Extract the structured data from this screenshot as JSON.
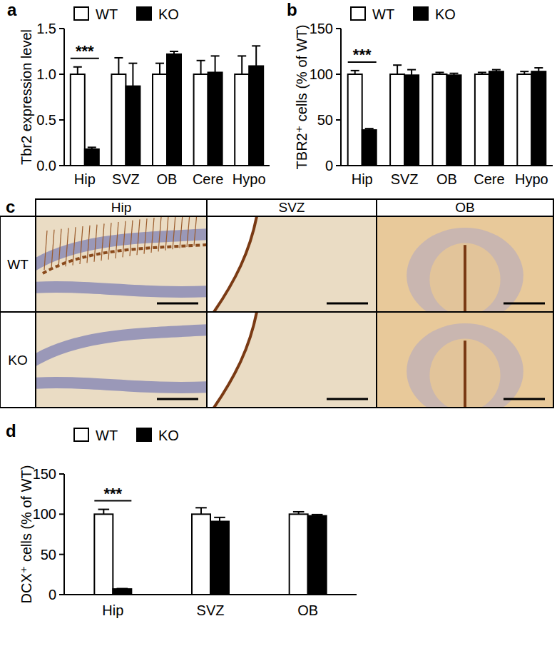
{
  "chart_data": [
    {
      "type": "bar",
      "panel_label": "a",
      "ylabel": "Tbr2 expression level",
      "categories": [
        "Hip",
        "SVZ",
        "OB",
        "Cere",
        "Hypo"
      ],
      "series": [
        {
          "name": "WT",
          "color": "#ffffff",
          "values": [
            1.0,
            1.0,
            1.0,
            1.0,
            1.0
          ],
          "errors": [
            0.08,
            0.18,
            0.12,
            0.15,
            0.2
          ]
        },
        {
          "name": "KO",
          "color": "#000000",
          "values": [
            0.18,
            0.87,
            1.22,
            1.02,
            1.09
          ],
          "errors": [
            0.02,
            0.25,
            0.03,
            0.18,
            0.22
          ]
        }
      ],
      "ylim": [
        0,
        1.5
      ],
      "yticks": [
        {
          "value": 0,
          "label": "0.0"
        },
        {
          "value": 0.5,
          "label": "0.5"
        },
        {
          "value": 1,
          "label": "1.0"
        },
        {
          "value": 1.5,
          "label": "1.5"
        }
      ],
      "legend": "top-left",
      "grid": false,
      "annotations": [
        {
          "text": "***",
          "x": "Hip"
        }
      ]
    },
    {
      "type": "bar",
      "panel_label": "b",
      "ylabel": "TBR2⁺ cells (% of WT)",
      "categories": [
        "Hip",
        "SVZ",
        "OB",
        "Cere",
        "Hypo"
      ],
      "series": [
        {
          "name": "WT",
          "color": "#ffffff",
          "values": [
            100,
            100,
            100,
            100,
            100
          ],
          "errors": [
            4,
            10,
            2,
            2,
            3
          ]
        },
        {
          "name": "KO",
          "color": "#000000",
          "values": [
            39,
            99,
            99,
            103,
            103
          ],
          "errors": [
            1.5,
            6,
            2,
            2,
            4
          ]
        }
      ],
      "ylim": [
        0,
        150
      ],
      "yticks": [
        0,
        50,
        100,
        150
      ],
      "legend": "top-left",
      "grid": false,
      "annotations": [
        {
          "text": "***",
          "x": "Hip"
        }
      ]
    },
    {
      "type": "bar",
      "panel_label": "d",
      "ylabel": "DCX⁺ cells (% of WT)",
      "categories": [
        "Hip",
        "SVZ",
        "OB"
      ],
      "series": [
        {
          "name": "WT",
          "color": "#ffffff",
          "values": [
            100,
            100,
            100
          ],
          "errors": [
            6,
            8,
            3
          ]
        },
        {
          "name": "KO",
          "color": "#000000",
          "values": [
            7,
            91,
            98
          ],
          "errors": [
            0.5,
            5,
            1.5
          ]
        }
      ],
      "ylim": [
        0,
        150
      ],
      "yticks": [
        0,
        50,
        100,
        150
      ],
      "legend": "top-left",
      "grid": false,
      "annotations": [
        {
          "text": "***",
          "x": "Hip"
        }
      ]
    }
  ],
  "image_panel": {
    "panel_label": "c",
    "columns": [
      "Hip",
      "SVZ",
      "OB"
    ],
    "rows": [
      "WT",
      "KO"
    ]
  }
}
